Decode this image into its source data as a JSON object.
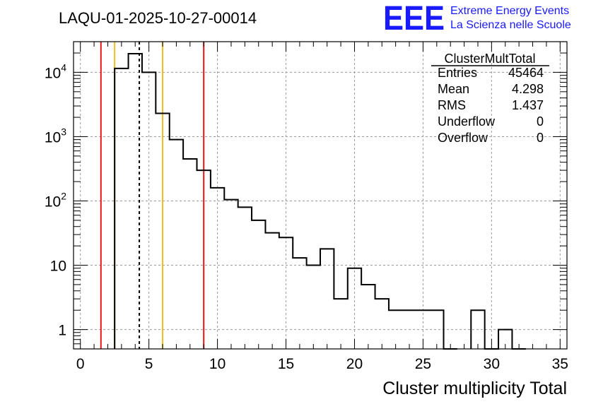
{
  "chart_data": {
    "type": "bar",
    "title": "LAQU-01-2025-10-27-00014",
    "xlabel": "Cluster multiplicity Total",
    "ylabel": "",
    "xlim": [
      -0.5,
      35.5
    ],
    "ylim": [
      0.5,
      30000
    ],
    "yscale": "log",
    "bin_width": 1,
    "bin_centers": [
      0,
      1,
      2,
      3,
      4,
      5,
      6,
      7,
      8,
      9,
      10,
      11,
      12,
      13,
      14,
      15,
      16,
      17,
      18,
      19,
      20,
      21,
      22,
      23,
      24,
      25,
      26,
      27,
      28,
      29,
      30,
      31,
      32,
      33,
      34,
      35
    ],
    "values": [
      0,
      0,
      0,
      11500,
      19500,
      10000,
      2300,
      900,
      450,
      300,
      160,
      105,
      80,
      50,
      32,
      27,
      13,
      10,
      18,
      3,
      9,
      5,
      3,
      2,
      2,
      2,
      2,
      0,
      0,
      2,
      0,
      1,
      0,
      0,
      0,
      0
    ],
    "x_ticks": [
      "0",
      "5",
      "10",
      "15",
      "20",
      "25",
      "30",
      "35"
    ],
    "x_tick_values": [
      0,
      5,
      10,
      15,
      20,
      25,
      30,
      35
    ],
    "y_ticks": [
      "1",
      "10",
      "10",
      "10",
      "10"
    ],
    "y_tick_values": [
      1,
      10,
      100,
      1000,
      10000
    ],
    "y_tick_exponents": [
      "",
      "",
      "2",
      "3",
      "4"
    ],
    "vlines": [
      {
        "x": 1.5,
        "color": "#e8151a",
        "style": "solid"
      },
      {
        "x": 2.5,
        "color": "#f2bd1d",
        "style": "solid"
      },
      {
        "x": 4.3,
        "color": "#000000",
        "style": "dashed"
      },
      {
        "x": 6.0,
        "color": "#f2bd1d",
        "style": "solid"
      },
      {
        "x": 9.0,
        "color": "#e8151a",
        "style": "solid"
      }
    ],
    "grid": true,
    "stats_box": {
      "name": "ClusterMultTotal",
      "rows": [
        {
          "label": "Entries",
          "value": "45464"
        },
        {
          "label": "Mean",
          "value": "4.298"
        },
        {
          "label": "RMS",
          "value": "1.437"
        },
        {
          "label": "Underflow",
          "value": "0"
        },
        {
          "label": "Overflow",
          "value": "0"
        }
      ]
    }
  },
  "logo": {
    "text": "EEE",
    "line1": "Extreme Energy Events",
    "line2": "La Scienza nelle Scuole"
  },
  "colors": {
    "histogram": "#000000",
    "grid": "#9a9a9a",
    "logo": "#1a1aff"
  }
}
